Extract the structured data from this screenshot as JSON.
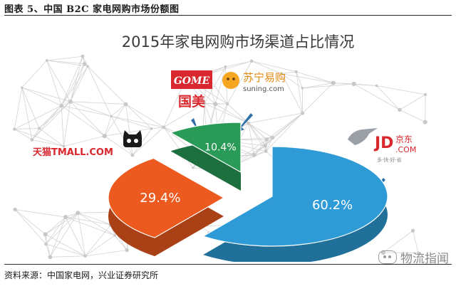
{
  "figure": {
    "caption": "图表 5、中国 B2C 家电网购市场份额图",
    "source": "资料来源：中国家电网，兴业证券研究所",
    "watermark": "物流指闻"
  },
  "logos": {
    "gome_en": "GOME",
    "gome_cn": "国美",
    "suning_cn": "苏宁易购",
    "suning_en": "suning.com",
    "tmall": "天猫TMALL.COM",
    "jd": "JD",
    "jd_com": ".COM",
    "jd_cn": "京东",
    "jd_slogan": "多·快·好·省"
  },
  "chart_data": {
    "type": "pie",
    "title": "2015年家电网购市场渠道占比情况",
    "categories": [
      "京东",
      "天猫",
      "苏宁易购"
    ],
    "values": [
      60.2,
      29.4,
      10.4
    ],
    "labels": [
      "60.2%",
      "29.4%",
      "10.4%"
    ],
    "colors": [
      "#2e9bd6",
      "#ec5a1f",
      "#2a9a58"
    ],
    "legend": "none"
  }
}
